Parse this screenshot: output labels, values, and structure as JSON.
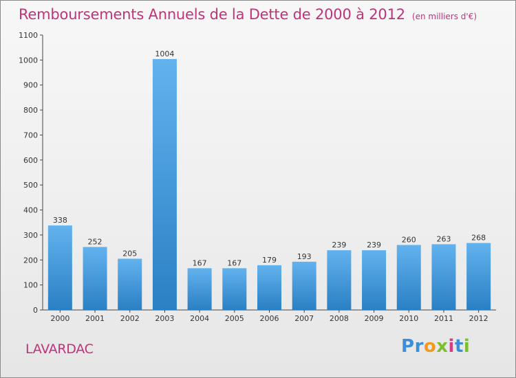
{
  "title": "Remboursements Annuels de la Dette de 2000 à 2012",
  "unit": "(en milliers d'€)",
  "city": "LAVARDAC",
  "logo": {
    "letters": [
      "P",
      "r",
      "o",
      "x",
      "i",
      "t",
      "i"
    ],
    "colors": [
      "#3a8fd8",
      "#3a8fd8",
      "#f39a1e",
      "#7cbf2e",
      "#d63c8a",
      "#3a8fd8",
      "#7cbf2e"
    ]
  },
  "colors": {
    "bar_light": "#62b2ee",
    "bar_dark": "#2a80c4",
    "title": "#c0327a",
    "axis": "#444444"
  },
  "chart_data": {
    "type": "bar",
    "categories": [
      "2000",
      "2001",
      "2002",
      "2003",
      "2004",
      "2005",
      "2006",
      "2007",
      "2008",
      "2009",
      "2010",
      "2011",
      "2012"
    ],
    "values": [
      338,
      252,
      205,
      1004,
      167,
      167,
      179,
      193,
      239,
      239,
      260,
      263,
      268
    ],
    "ylim": [
      0,
      1100
    ],
    "yticks": [
      0,
      100,
      200,
      300,
      400,
      500,
      600,
      700,
      800,
      900,
      1000,
      1100
    ],
    "grid": false,
    "data_labels": true
  }
}
